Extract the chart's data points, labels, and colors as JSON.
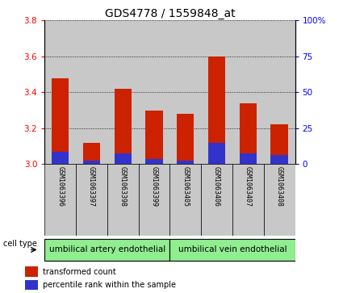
{
  "title": "GDS4778 / 1559848_at",
  "samples": [
    "GSM1063396",
    "GSM1063397",
    "GSM1063398",
    "GSM1063399",
    "GSM1063405",
    "GSM1063406",
    "GSM1063407",
    "GSM1063408"
  ],
  "red_values": [
    3.48,
    3.12,
    3.42,
    3.3,
    3.28,
    3.6,
    3.34,
    3.22
  ],
  "blue_heights": [
    0.07,
    0.02,
    0.06,
    0.03,
    0.02,
    0.12,
    0.06,
    0.05
  ],
  "ymin": 3.0,
  "ymax": 3.8,
  "y_left_ticks": [
    3.0,
    3.2,
    3.4,
    3.6,
    3.8
  ],
  "y_right_ticks": [
    0,
    25,
    50,
    75,
    100
  ],
  "cell_type_groups": [
    {
      "label": "umbilical artery endothelial",
      "start": 0,
      "end": 4
    },
    {
      "label": "umbilical vein endothelial",
      "start": 4,
      "end": 8
    }
  ],
  "bar_color": "#CC2200",
  "blue_color": "#3333CC",
  "tick_bg_color": "#c8c8c8",
  "group_color": "#90EE90",
  "legend_red": "transformed count",
  "legend_blue": "percentile rank within the sample",
  "cell_type_label": "cell type",
  "title_fontsize": 10,
  "tick_fontsize": 7.5,
  "sample_fontsize": 6,
  "group_fontsize": 7.5
}
